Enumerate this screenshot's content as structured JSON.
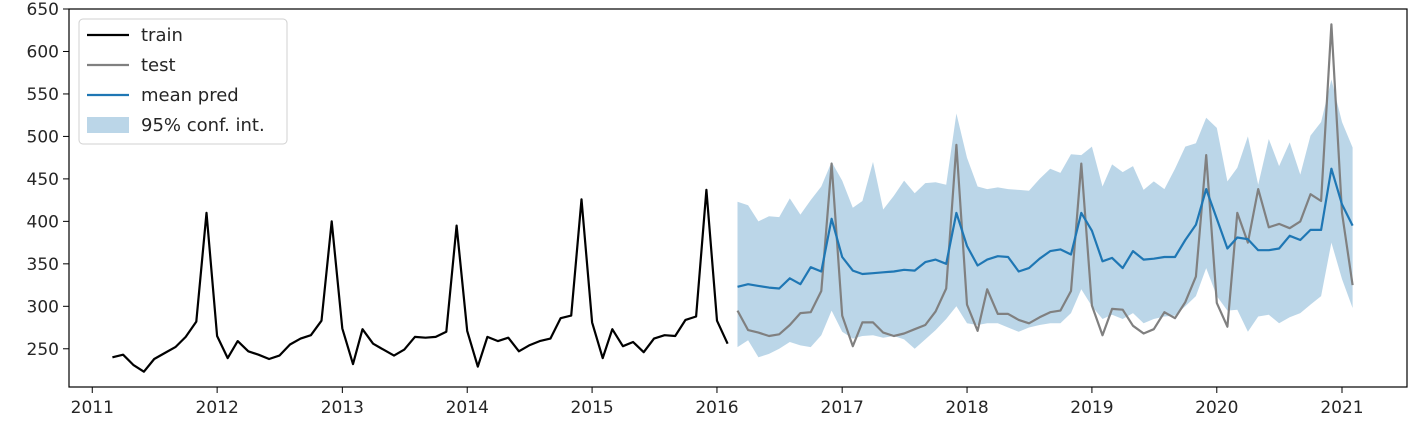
{
  "chart_data": {
    "type": "line",
    "title": "",
    "xlabel": "",
    "ylabel": "",
    "x_axis": "date",
    "xlim": [
      "2010-10-25",
      "2021-07-10"
    ],
    "ylim": [
      205,
      650
    ],
    "x_ticks": [
      "2011",
      "2012",
      "2013",
      "2014",
      "2015",
      "2016",
      "2017",
      "2018",
      "2019",
      "2020",
      "2021"
    ],
    "y_ticks": [
      250,
      300,
      350,
      400,
      450,
      500,
      550,
      600,
      650
    ],
    "grid": false,
    "legend_position": "top-left",
    "legend": [
      {
        "label": "train",
        "kind": "line",
        "color": "#000000"
      },
      {
        "label": "test",
        "kind": "line",
        "color": "#808080"
      },
      {
        "label": "mean pred",
        "kind": "line",
        "color": "#1f77b4"
      },
      {
        "label": "95% conf. int.",
        "kind": "band",
        "color": "#1f77b4"
      }
    ],
    "series": [
      {
        "name": "train",
        "color": "#000000",
        "x": [
          "2011-03",
          "2011-04",
          "2011-05",
          "2011-06",
          "2011-07",
          "2011-08",
          "2011-09",
          "2011-10",
          "2011-11",
          "2011-12",
          "2012-01",
          "2012-02",
          "2012-03",
          "2012-04",
          "2012-05",
          "2012-06",
          "2012-07",
          "2012-08",
          "2012-09",
          "2012-10",
          "2012-11",
          "2012-12",
          "2013-01",
          "2013-02",
          "2013-03",
          "2013-04",
          "2013-05",
          "2013-06",
          "2013-07",
          "2013-08",
          "2013-09",
          "2013-10",
          "2013-11",
          "2013-12",
          "2014-01",
          "2014-02",
          "2014-03",
          "2014-04",
          "2014-05",
          "2014-06",
          "2014-07",
          "2014-08",
          "2014-09",
          "2014-10",
          "2014-11",
          "2014-12",
          "2015-01",
          "2015-02",
          "2015-03",
          "2015-04",
          "2015-05",
          "2015-06",
          "2015-07",
          "2015-08",
          "2015-09",
          "2015-10",
          "2015-11",
          "2015-12",
          "2016-01",
          "2016-02"
        ],
        "y": [
          240,
          243,
          231,
          223,
          238,
          245,
          252,
          264,
          282,
          410,
          265,
          239,
          259,
          247,
          243,
          238,
          242,
          255,
          262,
          266,
          283,
          400,
          274,
          232,
          273,
          256,
          249,
          242,
          249,
          264,
          263,
          264,
          270,
          395,
          271,
          229,
          264,
          259,
          263,
          247,
          254,
          259,
          262,
          286,
          289,
          426,
          281,
          239,
          273,
          253,
          258,
          246,
          262,
          266,
          265,
          284,
          288,
          437,
          283,
          256
        ]
      },
      {
        "name": "test",
        "color": "#808080",
        "x": [
          "2016-03",
          "2016-04",
          "2016-05",
          "2016-06",
          "2016-07",
          "2016-08",
          "2016-09",
          "2016-10",
          "2016-11",
          "2016-12",
          "2017-01",
          "2017-02",
          "2017-03",
          "2017-04",
          "2017-05",
          "2017-06",
          "2017-07",
          "2017-08",
          "2017-09",
          "2017-10",
          "2017-11",
          "2017-12",
          "2018-01",
          "2018-02",
          "2018-03",
          "2018-04",
          "2018-05",
          "2018-06",
          "2018-07",
          "2018-08",
          "2018-09",
          "2018-10",
          "2018-11",
          "2018-12",
          "2019-01",
          "2019-02",
          "2019-03",
          "2019-04",
          "2019-05",
          "2019-06",
          "2019-07",
          "2019-08",
          "2019-09",
          "2019-10",
          "2019-11",
          "2019-12",
          "2020-01",
          "2020-02",
          "2020-03",
          "2020-04",
          "2020-05",
          "2020-06",
          "2020-07",
          "2020-08",
          "2020-09",
          "2020-10",
          "2020-11",
          "2020-12",
          "2021-01",
          "2021-02"
        ],
        "y": [
          295,
          272,
          269,
          265,
          267,
          278,
          292,
          293,
          318,
          468,
          289,
          253,
          281,
          281,
          269,
          265,
          268,
          273,
          278,
          294,
          321,
          490,
          302,
          271,
          320,
          291,
          291,
          284,
          280,
          287,
          293,
          295,
          318,
          468,
          301,
          266,
          297,
          296,
          277,
          268,
          273,
          293,
          286,
          305,
          335,
          478,
          304,
          276,
          410,
          375,
          438,
          393,
          397,
          392,
          400,
          432,
          424,
          632,
          410,
          325
        ]
      },
      {
        "name": "mean pred",
        "color": "#1f77b4",
        "x": [
          "2016-03",
          "2016-04",
          "2016-05",
          "2016-06",
          "2016-07",
          "2016-08",
          "2016-09",
          "2016-10",
          "2016-11",
          "2016-12",
          "2017-01",
          "2017-02",
          "2017-03",
          "2017-04",
          "2017-05",
          "2017-06",
          "2017-07",
          "2017-08",
          "2017-09",
          "2017-10",
          "2017-11",
          "2017-12",
          "2018-01",
          "2018-02",
          "2018-03",
          "2018-04",
          "2018-05",
          "2018-06",
          "2018-07",
          "2018-08",
          "2018-09",
          "2018-10",
          "2018-11",
          "2018-12",
          "2019-01",
          "2019-02",
          "2019-03",
          "2019-04",
          "2019-05",
          "2019-06",
          "2019-07",
          "2019-08",
          "2019-09",
          "2019-10",
          "2019-11",
          "2019-12",
          "2020-01",
          "2020-02",
          "2020-03",
          "2020-04",
          "2020-05",
          "2020-06",
          "2020-07",
          "2020-08",
          "2020-09",
          "2020-10",
          "2020-11",
          "2020-12",
          "2021-01",
          "2021-02"
        ],
        "y": [
          323,
          326,
          324,
          322,
          321,
          333,
          326,
          346,
          341,
          403,
          358,
          342,
          338,
          339,
          340,
          341,
          343,
          342,
          352,
          355,
          350,
          410,
          371,
          348,
          355,
          359,
          358,
          341,
          345,
          356,
          365,
          367,
          361,
          410,
          389,
          353,
          357,
          345,
          365,
          355,
          356,
          358,
          358,
          378,
          396,
          438,
          403,
          368,
          381,
          379,
          366,
          366,
          368,
          383,
          378,
          390,
          390,
          462,
          420,
          395
        ],
        "lower": [
          252,
          260,
          240,
          244,
          250,
          258,
          254,
          252,
          266,
          295,
          270,
          262,
          265,
          266,
          263,
          265,
          261,
          250,
          261,
          272,
          285,
          300,
          280,
          278,
          280,
          280,
          275,
          270,
          275,
          278,
          280,
          280,
          292,
          320,
          300,
          285,
          290,
          285,
          292,
          280,
          285,
          288,
          289,
          300,
          312,
          345,
          312,
          295,
          296,
          270,
          288,
          290,
          280,
          287,
          292,
          302,
          312,
          375,
          332,
          298
        ],
        "upper": [
          423,
          419,
          400,
          406,
          405,
          427,
          408,
          425,
          441,
          470,
          448,
          416,
          424,
          470,
          414,
          430,
          448,
          433,
          445,
          446,
          443,
          527,
          475,
          441,
          438,
          440,
          438,
          437,
          436,
          450,
          462,
          457,
          479,
          478,
          488,
          441,
          467,
          458,
          465,
          437,
          447,
          438,
          462,
          488,
          492,
          522,
          510,
          447,
          463,
          500,
          443,
          497,
          465,
          493,
          455,
          501,
          517,
          567,
          517,
          487
        ]
      }
    ]
  }
}
